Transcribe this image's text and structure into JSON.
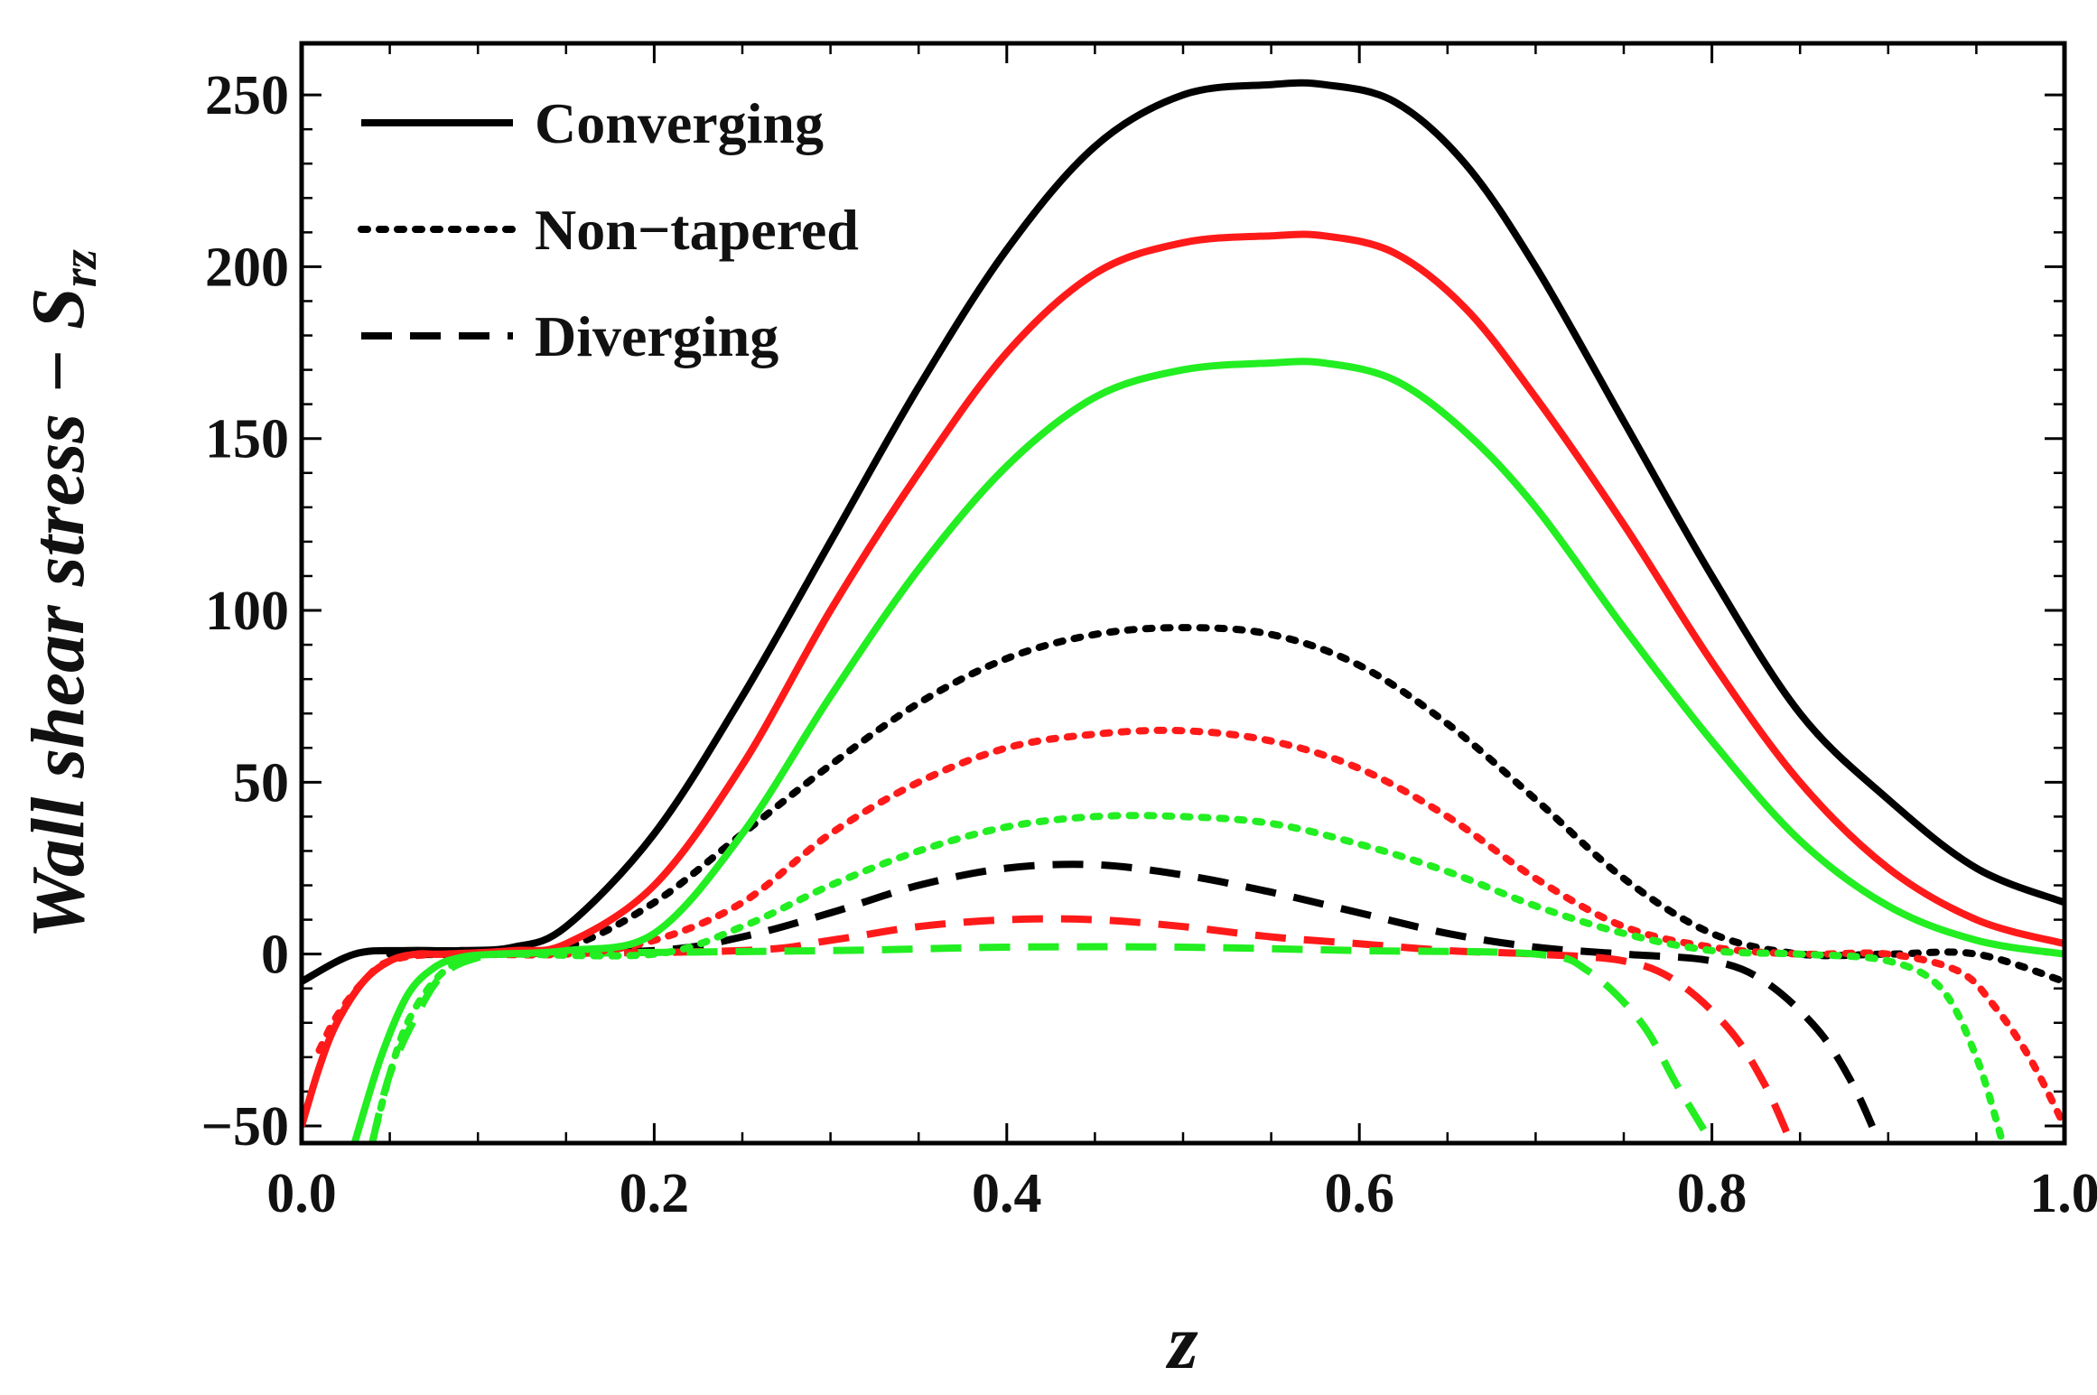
{
  "chart_data": {
    "type": "line",
    "title": "",
    "xlabel": "z",
    "ylabel": "Wall shear stress − ",
    "ylabel_symbol": "S",
    "ylabel_subscript": "rz",
    "xlim": [
      0.0,
      1.0
    ],
    "ylim": [
      -55,
      265
    ],
    "xticks": [
      0.0,
      0.2,
      0.4,
      0.6,
      0.8,
      1.0
    ],
    "xtick_labels": [
      "0.0",
      "0.2",
      "0.4",
      "0.6",
      "0.8",
      "1.0"
    ],
    "yticks": [
      -50,
      0,
      50,
      100,
      150,
      200,
      250
    ],
    "ytick_labels": [
      "−50",
      "0",
      "50",
      "100",
      "150",
      "200",
      "250"
    ],
    "grid": false,
    "legend_position": "top-left",
    "legend": [
      {
        "label": "Converging",
        "style": "solid"
      },
      {
        "label": "Non−tapered",
        "style": "dotted"
      },
      {
        "label": "Diverging",
        "style": "dashed"
      }
    ],
    "colors": {
      "black": "#000000",
      "red": "#ff1a1a",
      "green": "#22ee22"
    },
    "series": [
      {
        "name": "Converging (black)",
        "style": "solid",
        "color": "black",
        "x": [
          0.0,
          0.03,
          0.06,
          0.09,
          0.12,
          0.15,
          0.2,
          0.25,
          0.3,
          0.35,
          0.4,
          0.45,
          0.5,
          0.55,
          0.58,
          0.62,
          0.66,
          0.7,
          0.75,
          0.8,
          0.85,
          0.9,
          0.95,
          1.0
        ],
        "y": [
          -8,
          0,
          1,
          1,
          2,
          8,
          35,
          75,
          120,
          165,
          205,
          235,
          250,
          253,
          253,
          248,
          230,
          200,
          155,
          110,
          70,
          45,
          25,
          15
        ]
      },
      {
        "name": "Converging (red)",
        "style": "solid",
        "color": "red",
        "x": [
          0.0,
          0.01,
          0.02,
          0.035,
          0.05,
          0.065,
          0.08,
          0.12,
          0.15,
          0.2,
          0.25,
          0.3,
          0.35,
          0.4,
          0.45,
          0.5,
          0.55,
          0.58,
          0.62,
          0.66,
          0.7,
          0.75,
          0.8,
          0.85,
          0.9,
          0.95,
          1.0
        ],
        "y": [
          -50,
          -33,
          -20,
          -8,
          -2,
          0,
          0,
          1,
          3,
          20,
          55,
          100,
          140,
          175,
          198,
          207,
          209,
          209,
          204,
          188,
          162,
          125,
          85,
          50,
          25,
          10,
          3
        ]
      },
      {
        "name": "Converging (green)",
        "style": "solid",
        "color": "green",
        "x": [
          0.03,
          0.045,
          0.06,
          0.075,
          0.09,
          0.11,
          0.15,
          0.2,
          0.25,
          0.3,
          0.35,
          0.4,
          0.45,
          0.5,
          0.55,
          0.58,
          0.62,
          0.66,
          0.7,
          0.75,
          0.8,
          0.85,
          0.9,
          0.95,
          1.0
        ],
        "y": [
          -55,
          -30,
          -12,
          -4,
          -1,
          0,
          1,
          6,
          35,
          75,
          112,
          142,
          162,
          170,
          172,
          172,
          167,
          152,
          130,
          95,
          62,
          33,
          14,
          4,
          0
        ]
      },
      {
        "name": "Non-tapered (black)",
        "style": "dotted",
        "color": "black",
        "x": [
          0.05,
          0.1,
          0.15,
          0.2,
          0.25,
          0.3,
          0.35,
          0.4,
          0.45,
          0.5,
          0.55,
          0.6,
          0.65,
          0.7,
          0.75,
          0.8,
          0.85,
          0.9,
          0.95,
          1.0
        ],
        "y": [
          0,
          0,
          2,
          15,
          35,
          55,
          73,
          86,
          93,
          95,
          93,
          84,
          67,
          45,
          22,
          6,
          0,
          0,
          0,
          -8
        ]
      },
      {
        "name": "Non-tapered (red)",
        "style": "dotted",
        "color": "red",
        "x": [
          0.01,
          0.02,
          0.035,
          0.05,
          0.08,
          0.15,
          0.2,
          0.25,
          0.3,
          0.35,
          0.4,
          0.45,
          0.5,
          0.55,
          0.6,
          0.65,
          0.7,
          0.75,
          0.8,
          0.85,
          0.9,
          0.94,
          0.96,
          0.98,
          1.0
        ],
        "y": [
          -28,
          -18,
          -8,
          -2,
          0,
          0,
          4,
          15,
          35,
          50,
          60,
          64,
          65,
          62,
          54,
          40,
          22,
          8,
          2,
          0,
          0,
          -5,
          -15,
          -30,
          -50
        ]
      },
      {
        "name": "Non-tapered (green)",
        "style": "dotted",
        "color": "green",
        "x": [
          0.04,
          0.05,
          0.06,
          0.075,
          0.09,
          0.11,
          0.2,
          0.25,
          0.3,
          0.35,
          0.4,
          0.45,
          0.5,
          0.55,
          0.6,
          0.65,
          0.7,
          0.75,
          0.8,
          0.85,
          0.9,
          0.93,
          0.95,
          0.965
        ],
        "y": [
          -55,
          -35,
          -20,
          -8,
          -2,
          0,
          0,
          8,
          20,
          30,
          37,
          40,
          40,
          38,
          32,
          24,
          14,
          6,
          1,
          0,
          -2,
          -10,
          -30,
          -55
        ]
      },
      {
        "name": "Diverging (black)",
        "style": "dashed",
        "color": "black",
        "x": [
          0.1,
          0.2,
          0.25,
          0.3,
          0.35,
          0.4,
          0.45,
          0.5,
          0.55,
          0.6,
          0.65,
          0.7,
          0.75,
          0.8,
          0.83,
          0.86,
          0.88,
          0.895
        ],
        "y": [
          0,
          1,
          5,
          12,
          20,
          25,
          26,
          23,
          18,
          12,
          6,
          2,
          0,
          -2,
          -8,
          -22,
          -38,
          -55
        ]
      },
      {
        "name": "Diverging (red)",
        "style": "dashed",
        "color": "red",
        "x": [
          0.1,
          0.25,
          0.3,
          0.35,
          0.4,
          0.45,
          0.5,
          0.55,
          0.6,
          0.65,
          0.7,
          0.75,
          0.78,
          0.81,
          0.83,
          0.845
        ],
        "y": [
          0,
          1,
          4,
          8,
          10,
          10,
          8,
          5,
          3,
          1,
          0,
          -2,
          -8,
          -22,
          -38,
          -55
        ]
      },
      {
        "name": "Diverging (green)",
        "style": "dashed",
        "color": "green",
        "x": [
          0.04,
          0.05,
          0.065,
          0.08,
          0.1,
          0.12,
          0.3,
          0.4,
          0.5,
          0.6,
          0.7,
          0.73,
          0.76,
          0.78,
          0.8
        ],
        "y": [
          -55,
          -35,
          -18,
          -6,
          -1,
          0,
          1,
          2,
          2,
          1,
          0,
          -5,
          -20,
          -38,
          -55
        ]
      }
    ]
  }
}
